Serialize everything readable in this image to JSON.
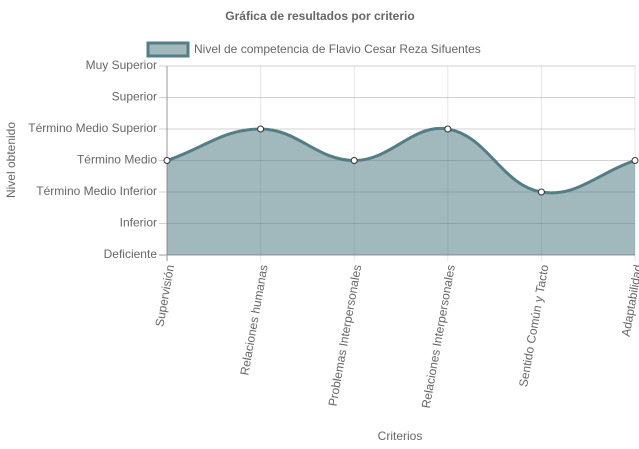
{
  "chart_data": {
    "type": "line",
    "title": "Gráfica de resultados por criterio",
    "x_label": "Criterios",
    "y_label": "Nivel obtenido",
    "categories": [
      "Supervisión",
      "Relaciones humanas",
      "Problemas Interpersonales",
      "Relaciones Interpersonales",
      "Sentido Común y Tacto",
      "Adaptabilidad"
    ],
    "series": [
      {
        "name": "Nivel de competencia de Flavio Cesar Reza Sifuentes",
        "color": "#537e85",
        "values": [
          3,
          4,
          3,
          4,
          2,
          3
        ]
      }
    ],
    "fill": true,
    "ylim": [
      0,
      6
    ],
    "yticks": [
      {
        "value": 0,
        "label": "Deficiente"
      },
      {
        "value": 1,
        "label": "Inferior"
      },
      {
        "value": 2,
        "label": "Término Medio Inferior"
      },
      {
        "value": 3,
        "label": "Término Medio"
      },
      {
        "value": 4,
        "label": "Término Medio Superior"
      },
      {
        "value": 5,
        "label": "Superior"
      },
      {
        "value": 6,
        "label": "Muy Superior"
      }
    ],
    "grid": true,
    "legend": "top"
  }
}
